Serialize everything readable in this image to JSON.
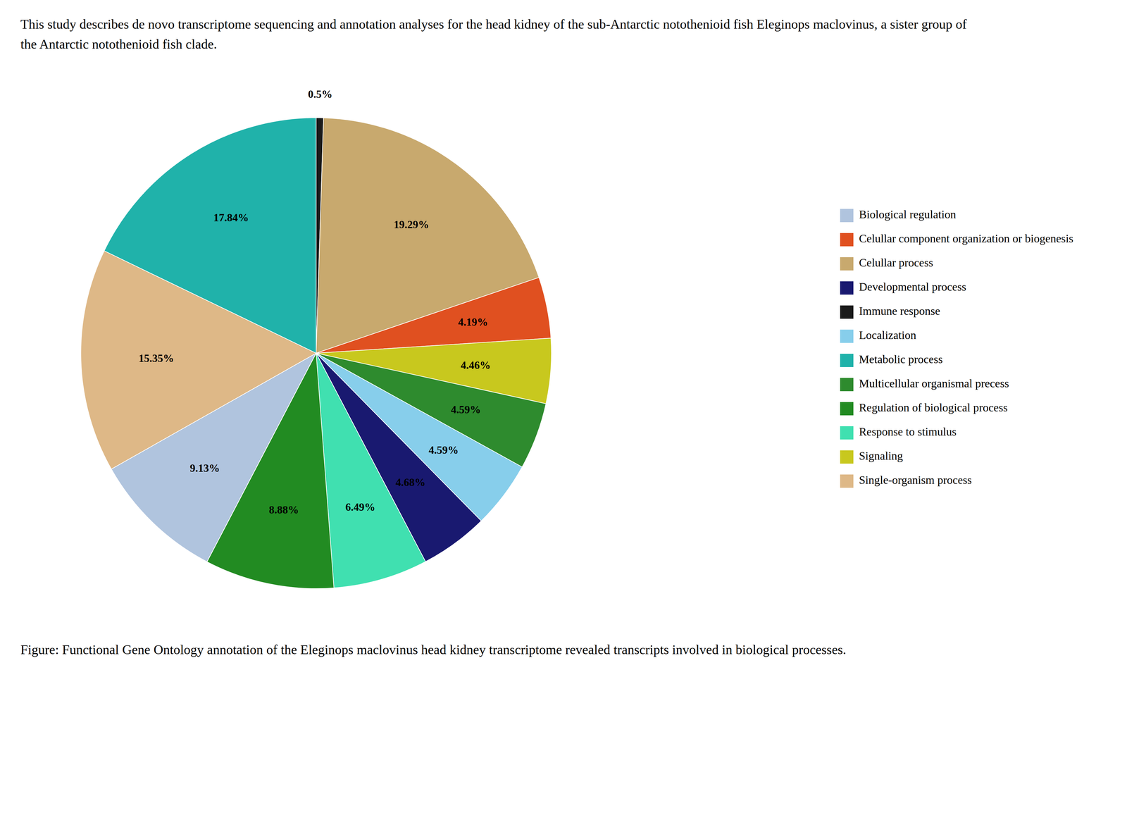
{
  "chart_data": {
    "type": "pie",
    "title": "This study describes de novo transcriptome sequencing and annotation analyses for the head kidney of the sub-Antarctic notothenioid fish Eleginops maclovinus, a sister group of the Antarctic notothenioid fish clade.",
    "categories": [
      "Immune response",
      "Celullar process",
      "Celullar component organization or biogenesis",
      "Signaling",
      "Multicellular organismal precess",
      "Localization",
      "Developmental process",
      "Response to stimulus",
      "Regulation of biological process",
      "Biological regulation",
      "Single-organism process",
      "Metabolic process"
    ],
    "values": [
      0.5,
      19.29,
      4.19,
      4.46,
      4.59,
      4.59,
      4.68,
      6.49,
      8.88,
      9.13,
      15.35,
      17.84
    ],
    "value_labels": [
      "0.5%",
      "19.29%",
      "4.19%",
      "4.46%",
      "4.59%",
      "4.59%",
      "4.68%",
      "6.49%",
      "8.88%",
      "9.13%",
      "15.35%",
      "17.84%"
    ],
    "colors": [
      "#1a1a1a",
      "#c8a96e",
      "#e05020",
      "#c8c81e",
      "#2e8b2e",
      "#87CEEB",
      "#191970",
      "#40e0b0",
      "#228b22",
      "#b0c4de",
      "#deb887",
      "#20b2aa"
    ],
    "data_labels": true,
    "legend": "right",
    "annotations": [
      "Figure: Functional Gene Ontology annotation of the Eleginops maclovinus head kidney transcriptome revealed transcripts involved in biological processes."
    ]
  }
}
